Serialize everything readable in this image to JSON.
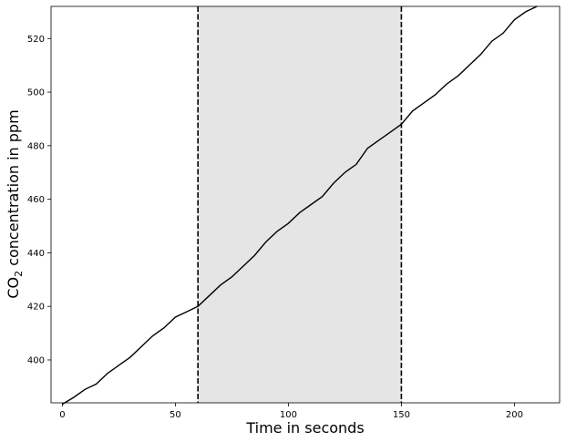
{
  "chart_data": {
    "type": "line",
    "title": "",
    "xlabel": "Time in seconds",
    "ylabel_main": "CO",
    "ylabel_sub": "2",
    "ylabel_rest": " concentration in ppm",
    "xlim": [
      -5,
      220
    ],
    "ylim": [
      384,
      532
    ],
    "xticks": [
      {
        "value": 0,
        "label": "0"
      },
      {
        "value": 50,
        "label": "50"
      },
      {
        "value": 100,
        "label": "100"
      },
      {
        "value": 150,
        "label": "150"
      },
      {
        "value": 200,
        "label": "200"
      }
    ],
    "yticks": [
      {
        "value": 400,
        "label": "400"
      },
      {
        "value": 420,
        "label": "420"
      },
      {
        "value": 440,
        "label": "440"
      },
      {
        "value": 460,
        "label": "460"
      },
      {
        "value": 480,
        "label": "480"
      },
      {
        "value": 500,
        "label": "500"
      },
      {
        "value": 520,
        "label": "520"
      }
    ],
    "shaded_region": {
      "x_start": 60,
      "x_end": 150,
      "color": "#e5e5e5"
    },
    "vlines": [
      60,
      150
    ],
    "series": [
      {
        "color": "#000000",
        "x": [
          0,
          5,
          10,
          15,
          20,
          25,
          30,
          35,
          40,
          45,
          50,
          55,
          60,
          65,
          70,
          75,
          80,
          85,
          90,
          95,
          100,
          105,
          110,
          115,
          120,
          125,
          130,
          135,
          140,
          145,
          150,
          155,
          160,
          165,
          170,
          175,
          180,
          185,
          190,
          195,
          200,
          205,
          210
        ],
        "y": [
          383.5,
          386,
          389,
          391,
          395,
          398,
          401,
          405,
          409,
          412,
          416,
          418,
          420,
          424,
          428,
          431,
          435,
          439,
          444,
          448,
          451,
          455,
          458,
          461,
          466,
          470,
          473,
          479,
          482,
          485,
          488,
          493,
          496,
          499,
          503,
          506,
          510,
          514,
          519,
          522,
          527,
          530,
          532
        ]
      }
    ]
  }
}
